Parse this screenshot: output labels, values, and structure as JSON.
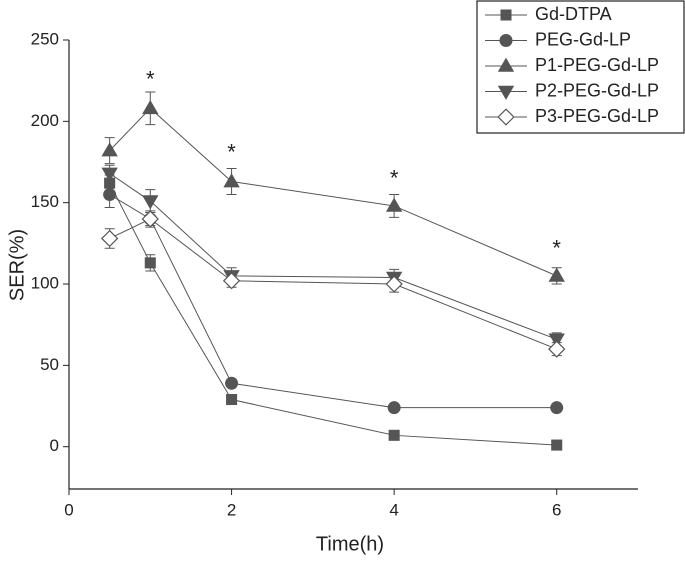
{
  "chart_data": {
    "type": "line",
    "x_label": "Time(h)",
    "y_label": "SER(%)",
    "x": [
      0.5,
      1,
      2,
      4,
      6
    ],
    "series": [
      {
        "name": "Gd-DTPA",
        "color": "#555555",
        "marker": "square",
        "values": [
          162,
          113,
          29,
          7,
          1
        ],
        "errors": [
          5,
          5,
          2,
          2,
          2
        ]
      },
      {
        "name": "PEG-Gd-LP",
        "color": "#555555",
        "marker": "circle",
        "values": [
          155,
          140,
          39,
          24,
          24
        ],
        "errors": [
          8,
          4,
          2,
          2,
          2
        ]
      },
      {
        "name": "P1-PEG-Gd-LP",
        "color": "#555555",
        "marker": "triangle-up",
        "values": [
          182,
          208,
          163,
          148,
          105
        ],
        "errors": [
          8,
          10,
          8,
          7,
          5
        ]
      },
      {
        "name": "P2-PEG-Gd-LP",
        "color": "#555555",
        "marker": "triangle-down",
        "values": [
          168,
          151,
          105,
          104,
          66
        ],
        "errors": [
          5,
          7,
          5,
          5,
          4
        ]
      },
      {
        "name": "P3-PEG-Gd-LP",
        "color": "#555555",
        "marker": "diamond",
        "values": [
          128,
          140,
          102,
          100,
          60
        ],
        "errors": [
          6,
          5,
          4,
          5,
          4
        ]
      }
    ],
    "annotations": [
      {
        "text": "*",
        "x": 1,
        "y": 225
      },
      {
        "text": "*",
        "x": 2,
        "y": 180
      },
      {
        "text": "*",
        "x": 4,
        "y": 164
      },
      {
        "text": "*",
        "x": 6,
        "y": 121
      }
    ],
    "xlim": [
      0,
      7
    ],
    "xticks": [
      0,
      2,
      4,
      6
    ],
    "ylim": [
      -26,
      250
    ],
    "yticks": [
      0,
      50,
      100,
      150,
      200,
      250
    ],
    "legend": "upper right"
  }
}
